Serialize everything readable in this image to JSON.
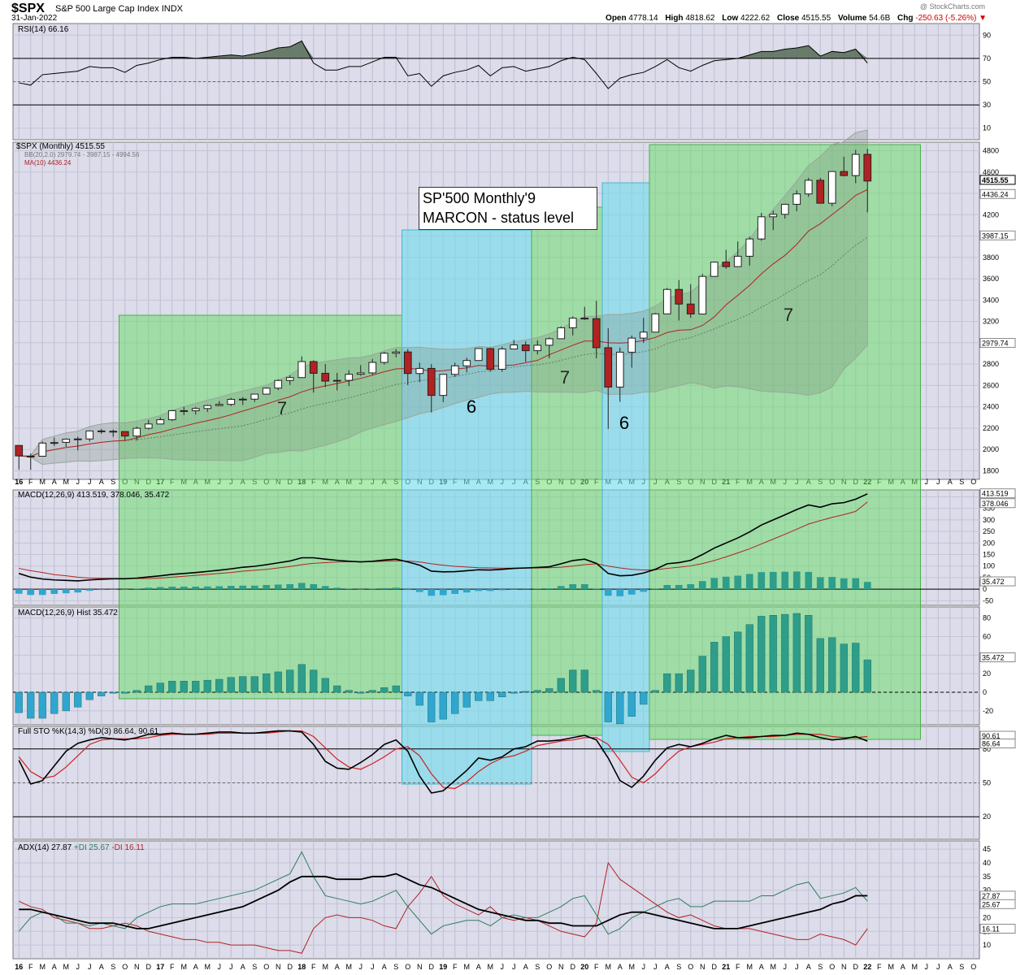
{
  "header": {
    "symbol": "$SPX",
    "name": "S&P 500 Large Cap Index",
    "exchange": "INDX",
    "date": "31-Jan-2022",
    "watermark": "@ StockCharts.com",
    "open_label": "Open",
    "open": "4778.14",
    "high_label": "High",
    "high": "4818.62",
    "low_label": "Low",
    "low": "4222.62",
    "close_label": "Close",
    "close": "4515.55",
    "volume_label": "Volume",
    "volume": "54.6B",
    "chg_label": "Chg",
    "chg": "-250.63 (-5.26%)",
    "chg_arrow": "▼"
  },
  "annotation": {
    "line1": "SP'500 Monthly'9",
    "line2": "MARCON - status level"
  },
  "chart_data": {
    "type": "candlestick",
    "months": [
      "Jan 2016",
      "Feb 2016",
      "Mar 2016",
      "Apr 2016",
      "May 2016",
      "Jun 2016",
      "Jul 2016",
      "Aug 2016",
      "Sep 2016",
      "Oct 2016",
      "Nov 2016",
      "Dec 2016",
      "Jan 2017",
      "Feb 2017",
      "Mar 2017",
      "Apr 2017",
      "May 2017",
      "Jun 2017",
      "Jul 2017",
      "Aug 2017",
      "Sep 2017",
      "Oct 2017",
      "Nov 2017",
      "Dec 2017",
      "Jan 2018",
      "Feb 2018",
      "Mar 2018",
      "Apr 2018",
      "May 2018",
      "Jun 2018",
      "Jul 2018",
      "Aug 2018",
      "Sep 2018",
      "Oct 2018",
      "Nov 2018",
      "Dec 2018",
      "Jan 2019",
      "Feb 2019",
      "Mar 2019",
      "Apr 2019",
      "May 2019",
      "Jun 2019",
      "Jul 2019",
      "Aug 2019",
      "Sep 2019",
      "Oct 2019",
      "Nov 2019",
      "Dec 2019",
      "Jan 2020",
      "Feb 2020",
      "Mar 2020",
      "Apr 2020",
      "May 2020",
      "Jun 2020",
      "Jul 2020",
      "Aug 2020",
      "Sep 2020",
      "Oct 2020",
      "Nov 2020",
      "Dec 2020",
      "Jan 2021",
      "Feb 2021",
      "Mar 2021",
      "Apr 2021",
      "May 2021",
      "Jun 2021",
      "Jul 2021",
      "Aug 2021",
      "Sep 2021",
      "Oct 2021",
      "Nov 2021",
      "Dec 2021",
      "Jan 2022"
    ],
    "xaxis_labels": [
      "16",
      "F",
      "M",
      "A",
      "M",
      "J",
      "J",
      "A",
      "S",
      "O",
      "N",
      "D",
      "17",
      "F",
      "M",
      "A",
      "M",
      "J",
      "J",
      "A",
      "S",
      "O",
      "N",
      "D",
      "18",
      "F",
      "M",
      "A",
      "M",
      "J",
      "J",
      "A",
      "S",
      "O",
      "N",
      "D",
      "19",
      "F",
      "M",
      "A",
      "M",
      "J",
      "J",
      "A",
      "S",
      "O",
      "N",
      "D",
      "20",
      "F",
      "M",
      "A",
      "M",
      "J",
      "J",
      "A",
      "S",
      "O",
      "N",
      "D",
      "21",
      "F",
      "M",
      "A",
      "M",
      "J",
      "J",
      "A",
      "S",
      "O",
      "N",
      "D",
      "22",
      "F",
      "M",
      "A",
      "M",
      "J",
      "J",
      "A",
      "S",
      "O"
    ],
    "ohlc": [
      [
        2038,
        2038,
        1812,
        1940
      ],
      [
        1937,
        1962,
        1810,
        1932
      ],
      [
        1937,
        2075,
        1937,
        2060
      ],
      [
        2060,
        2111,
        2033,
        2065
      ],
      [
        2067,
        2103,
        2025,
        2097
      ],
      [
        2097,
        2120,
        1992,
        2099
      ],
      [
        2099,
        2178,
        2075,
        2174
      ],
      [
        2174,
        2193,
        2147,
        2171
      ],
      [
        2171,
        2187,
        2119,
        2168
      ],
      [
        2168,
        2169,
        2083,
        2126
      ],
      [
        2126,
        2214,
        2084,
        2199
      ],
      [
        2199,
        2277,
        2188,
        2239
      ],
      [
        2239,
        2301,
        2245,
        2279
      ],
      [
        2279,
        2371,
        2267,
        2364
      ],
      [
        2364,
        2401,
        2322,
        2363
      ],
      [
        2363,
        2398,
        2328,
        2384
      ],
      [
        2384,
        2419,
        2352,
        2412
      ],
      [
        2412,
        2454,
        2405,
        2423
      ],
      [
        2423,
        2484,
        2407,
        2470
      ],
      [
        2470,
        2491,
        2417,
        2472
      ],
      [
        2472,
        2519,
        2446,
        2519
      ],
      [
        2519,
        2582,
        2520,
        2575
      ],
      [
        2575,
        2657,
        2557,
        2647
      ],
      [
        2647,
        2695,
        2605,
        2674
      ],
      [
        2674,
        2873,
        2682,
        2824
      ],
      [
        2824,
        2836,
        2533,
        2714
      ],
      [
        2714,
        2801,
        2585,
        2641
      ],
      [
        2641,
        2718,
        2553,
        2648
      ],
      [
        2648,
        2742,
        2594,
        2705
      ],
      [
        2705,
        2791,
        2691,
        2718
      ],
      [
        2718,
        2848,
        2698,
        2816
      ],
      [
        2816,
        2916,
        2796,
        2902
      ],
      [
        2902,
        2941,
        2864,
        2914
      ],
      [
        2914,
        2940,
        2604,
        2712
      ],
      [
        2712,
        2815,
        2631,
        2760
      ],
      [
        2760,
        2800,
        2347,
        2507
      ],
      [
        2507,
        2708,
        2444,
        2704
      ],
      [
        2704,
        2814,
        2681,
        2784
      ],
      [
        2784,
        2860,
        2722,
        2834
      ],
      [
        2834,
        2950,
        2848,
        2946
      ],
      [
        2946,
        2954,
        2729,
        2752
      ],
      [
        2752,
        2964,
        2728,
        2942
      ],
      [
        2942,
        3028,
        2952,
        2980
      ],
      [
        2980,
        3014,
        2822,
        2926
      ],
      [
        2926,
        3022,
        2892,
        2977
      ],
      [
        2977,
        3050,
        2855,
        3038
      ],
      [
        3038,
        3154,
        3050,
        3141
      ],
      [
        3141,
        3248,
        3070,
        3231
      ],
      [
        3231,
        3337,
        3214,
        3226
      ],
      [
        3226,
        3394,
        2855,
        2954
      ],
      [
        2954,
        3136,
        2192,
        2585
      ],
      [
        2585,
        2955,
        2447,
        2912
      ],
      [
        2912,
        3068,
        2767,
        3044
      ],
      [
        3044,
        3233,
        2999,
        3100
      ],
      [
        3100,
        3280,
        3101,
        3271
      ],
      [
        3271,
        3515,
        3280,
        3500
      ],
      [
        3500,
        3588,
        3209,
        3363
      ],
      [
        3363,
        3550,
        3234,
        3270
      ],
      [
        3270,
        3646,
        3279,
        3622
      ],
      [
        3622,
        3760,
        3633,
        3756
      ],
      [
        3756,
        3870,
        3694,
        3714
      ],
      [
        3714,
        3950,
        3725,
        3811
      ],
      [
        3811,
        3995,
        3723,
        3973
      ],
      [
        3973,
        4218,
        3956,
        4181
      ],
      [
        4181,
        4238,
        4056,
        4204
      ],
      [
        4204,
        4302,
        4164,
        4298
      ],
      [
        4298,
        4429,
        4233,
        4395
      ],
      [
        4395,
        4546,
        4368,
        4523
      ],
      [
        4523,
        4546,
        4306,
        4308
      ],
      [
        4308,
        4608,
        4279,
        4605
      ],
      [
        4605,
        4744,
        4560,
        4567
      ],
      [
        4567,
        4808,
        4495,
        4766
      ],
      [
        4766,
        4818,
        4222,
        4516
      ]
    ],
    "price_axis": {
      "ticks": [
        1800,
        2000,
        2200,
        2400,
        2600,
        2800,
        3000,
        3200,
        3400,
        3600,
        3800,
        4000,
        4200,
        4400,
        4600,
        4800
      ],
      "range": [
        1720,
        4880
      ],
      "labels": [
        "1800",
        "2000",
        "2200",
        "2400",
        "2600",
        "2800",
        "3000",
        "3200",
        "3400",
        "3600",
        "3800",
        "4000",
        "4200",
        "4400",
        "4600",
        "4800"
      ]
    },
    "price_legend": {
      "title": "$SPX (Monthly) 4515.55",
      "bb": "BB(20,2.0) 2979.74 - 3987.15 - 4994.56",
      "ma": "MA(10) 4436.24"
    },
    "price_tags": [
      "4515.55",
      "4436.24",
      "3987.15",
      "2979.74"
    ],
    "zones": [
      {
        "label": "7",
        "color": "green",
        "from": "Oct 2016",
        "to": "Sep 2018"
      },
      {
        "label": "6",
        "color": "cyan",
        "from": "Oct 2018",
        "to": "Aug 2019"
      },
      {
        "label": "7",
        "color": "green",
        "from": "Sep 2019",
        "to": "Feb 2020"
      },
      {
        "label": "6",
        "color": "cyan",
        "from": "Mar 2020",
        "to": "Jun 2020"
      },
      {
        "label": "7",
        "color": "green",
        "from": "Jul 2020",
        "to": "Apr 2022"
      }
    ],
    "rsi": {
      "title": "RSI(14) 66.16",
      "value": "66.16",
      "ticks": [
        "90",
        "70",
        "50",
        "30",
        "10"
      ],
      "values": [
        49,
        47,
        56,
        57,
        58,
        59,
        63,
        62,
        62,
        58,
        64,
        66,
        69,
        71,
        71,
        70,
        71,
        72,
        73,
        72,
        74,
        76,
        79,
        80,
        85,
        66,
        60,
        60,
        63,
        63,
        67,
        71,
        71,
        55,
        57,
        46,
        55,
        58,
        60,
        64,
        55,
        62,
        63,
        59,
        61,
        63,
        68,
        71,
        69,
        57,
        44,
        53,
        56,
        58,
        63,
        69,
        62,
        59,
        64,
        68,
        69,
        70,
        73,
        76,
        76,
        78,
        79,
        81,
        72,
        76,
        75,
        78,
        66
      ]
    },
    "macd": {
      "title": "MACD(12,26,9) 413.519, 378.046, 35.472",
      "macd_line": "413.519",
      "signal": "378.046",
      "hist_tag": "35.472",
      "ticks": [
        "400",
        "350",
        "300",
        "250",
        "200",
        "150",
        "100",
        "50",
        "0",
        "-50"
      ],
      "macd_values": [
        68,
        52,
        44,
        40,
        38,
        36,
        40,
        43,
        45,
        45,
        48,
        53,
        58,
        64,
        68,
        72,
        77,
        82,
        88,
        95,
        99,
        106,
        114,
        122,
        136,
        136,
        130,
        125,
        121,
        118,
        121,
        126,
        130,
        118,
        104,
        78,
        75,
        76,
        80,
        84,
        83,
        86,
        90,
        92,
        94,
        97,
        110,
        124,
        130,
        112,
        68,
        58,
        60,
        70,
        86,
        110,
        115,
        125,
        150,
        178,
        200,
        222,
        248,
        278,
        300,
        322,
        345,
        365,
        355,
        370,
        375,
        390,
        413
      ],
      "signal_values": [
        90,
        80,
        72,
        63,
        58,
        52,
        48,
        47,
        46,
        46,
        46,
        46,
        48,
        52,
        56,
        60,
        64,
        68,
        72,
        78,
        82,
        86,
        92,
        98,
        106,
        112,
        115,
        118,
        119,
        119,
        119,
        121,
        123,
        122,
        118,
        110,
        104,
        99,
        96,
        93,
        92,
        91,
        91,
        91,
        92,
        93,
        95,
        100,
        106,
        110,
        100,
        92,
        86,
        83,
        84,
        90,
        95,
        101,
        111,
        124,
        140,
        157,
        175,
        196,
        217,
        238,
        260,
        282,
        297,
        311,
        323,
        337,
        378
      ]
    },
    "hist": {
      "title": "MACD(12,26,9) Hist 35.472",
      "value": "35.472",
      "ticks": [
        "80",
        "60",
        "40",
        "20",
        "0",
        "-20"
      ],
      "values": [
        -22,
        -28,
        -28,
        -23,
        -20,
        -16,
        -8,
        -4,
        -1,
        -1,
        2,
        7,
        10,
        12,
        12,
        12,
        13,
        14,
        16,
        17,
        17,
        20,
        22,
        24,
        30,
        24,
        15,
        7,
        2,
        -1,
        2,
        5,
        7,
        -4,
        -14,
        -32,
        -29,
        -23,
        -16,
        -9,
        -9,
        -5,
        -1,
        1,
        2,
        4,
        15,
        24,
        24,
        2,
        -32,
        -34,
        -26,
        -13,
        2,
        20,
        20,
        24,
        39,
        54,
        60,
        65,
        73,
        82,
        83,
        84,
        85,
        83,
        58,
        59,
        52,
        53,
        35
      ]
    },
    "sto": {
      "title": "Full STO %K(14,3) %D(3) 86.64, 90.61",
      "k": "86.64",
      "d": "90.61",
      "ticks": [
        "80",
        "50",
        "20"
      ],
      "k_values": [
        70,
        49,
        52,
        65,
        78,
        85,
        88,
        90,
        89,
        88,
        90,
        93,
        93,
        94,
        93,
        93,
        94,
        95,
        95,
        94,
        94,
        95,
        96,
        96,
        95,
        84,
        69,
        63,
        62,
        68,
        75,
        84,
        88,
        78,
        56,
        41,
        43,
        52,
        61,
        72,
        70,
        73,
        80,
        82,
        87,
        87,
        88,
        90,
        92,
        88,
        72,
        52,
        46,
        56,
        70,
        81,
        84,
        82,
        85,
        89,
        92,
        90,
        90,
        91,
        92,
        92,
        94,
        93,
        90,
        88,
        89,
        91,
        87
      ],
      "d_values": [
        73,
        60,
        54,
        56,
        64,
        74,
        84,
        88,
        89,
        89,
        89,
        90,
        92,
        93,
        93,
        93,
        93,
        94,
        94,
        94,
        94,
        94,
        95,
        96,
        96,
        91,
        81,
        71,
        64,
        62,
        67,
        73,
        80,
        82,
        74,
        58,
        46,
        45,
        51,
        60,
        67,
        72,
        74,
        78,
        83,
        85,
        87,
        88,
        90,
        90,
        84,
        70,
        55,
        50,
        58,
        69,
        78,
        82,
        84,
        86,
        89,
        90,
        91,
        91,
        91,
        92,
        93,
        93,
        93,
        91,
        90,
        90,
        91
      ]
    },
    "adx": {
      "title": "ADX(14) 27.87",
      "plus_di_label": "+DI 25.67",
      "minus_di_label": "-DI 16.11",
      "adx_tag": "27.87",
      "pdi_tag": "25.67",
      "mdi_tag": "16.11",
      "ticks": [
        "45",
        "40",
        "35",
        "30",
        "25",
        "20",
        "15",
        "10"
      ],
      "adx_values": [
        23,
        23,
        22,
        21,
        20,
        19,
        18,
        18,
        18,
        17,
        16,
        16,
        17,
        18,
        19,
        20,
        21,
        22,
        23,
        24,
        26,
        28,
        30,
        33,
        35,
        35,
        35,
        34,
        34,
        34,
        35,
        35,
        36,
        34,
        32,
        31,
        29,
        27,
        25,
        23,
        22,
        21,
        20,
        19,
        19,
        18,
        18,
        17,
        17,
        17,
        19,
        21,
        22,
        22,
        21,
        20,
        19,
        18,
        17,
        16,
        16,
        16,
        17,
        18,
        19,
        20,
        21,
        22,
        23,
        25,
        26,
        28,
        28
      ],
      "pdi_values": [
        15,
        20,
        22,
        21,
        18,
        18,
        17,
        18,
        17,
        16,
        20,
        22,
        24,
        25,
        25,
        25,
        26,
        27,
        28,
        29,
        30,
        32,
        34,
        36,
        44,
        35,
        28,
        27,
        26,
        25,
        26,
        28,
        30,
        24,
        19,
        14,
        17,
        18,
        19,
        19,
        17,
        20,
        21,
        20,
        20,
        22,
        24,
        27,
        28,
        21,
        14,
        16,
        20,
        22,
        24,
        26,
        27,
        24,
        24,
        26,
        26,
        26,
        26,
        28,
        28,
        30,
        32,
        33,
        27,
        28,
        29,
        31,
        26
      ],
      "mdi_values": [
        26,
        24,
        23,
        20,
        19,
        18,
        16,
        16,
        17,
        18,
        17,
        15,
        14,
        13,
        12,
        12,
        11,
        11,
        10,
        10,
        10,
        9,
        8,
        8,
        7,
        16,
        20,
        21,
        20,
        20,
        19,
        17,
        16,
        24,
        29,
        35,
        28,
        25,
        23,
        21,
        24,
        20,
        19,
        20,
        19,
        17,
        15,
        14,
        13,
        18,
        40,
        34,
        31,
        28,
        25,
        22,
        20,
        21,
        19,
        17,
        16,
        16,
        16,
        15,
        14,
        13,
        12,
        12,
        14,
        13,
        12,
        10,
        16
      ]
    }
  }
}
